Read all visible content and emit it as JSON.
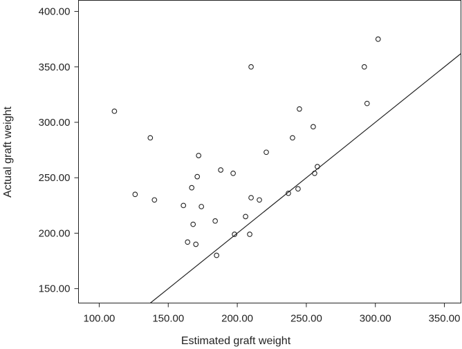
{
  "chart_data": {
    "type": "scatter",
    "title": "",
    "xlabel": "Estimated graft weight",
    "ylabel": "Actual graft weight",
    "xlim": [
      85,
      362
    ],
    "ylim": [
      137,
      410
    ],
    "x_ticks": [
      100,
      150,
      200,
      250,
      300,
      350
    ],
    "y_ticks": [
      150,
      200,
      250,
      300,
      350,
      400
    ],
    "x_tick_labels": [
      "100.00",
      "150.00",
      "200.00",
      "250.00",
      "300.00",
      "350.00"
    ],
    "y_tick_labels": [
      "150.00",
      "200.00",
      "250.00",
      "300.00",
      "350.00",
      "400.00"
    ],
    "grid": false,
    "reference_line": "y = x",
    "colors": {
      "marker": "#222222",
      "line": "#222222",
      "frame": "#222222"
    },
    "points": [
      {
        "x": 111,
        "y": 310
      },
      {
        "x": 126,
        "y": 235
      },
      {
        "x": 137,
        "y": 286
      },
      {
        "x": 140,
        "y": 230
      },
      {
        "x": 161,
        "y": 225
      },
      {
        "x": 164,
        "y": 192
      },
      {
        "x": 167,
        "y": 241
      },
      {
        "x": 168,
        "y": 208
      },
      {
        "x": 170,
        "y": 190
      },
      {
        "x": 171,
        "y": 251
      },
      {
        "x": 172,
        "y": 270
      },
      {
        "x": 174,
        "y": 224
      },
      {
        "x": 184,
        "y": 211
      },
      {
        "x": 185,
        "y": 180
      },
      {
        "x": 188,
        "y": 257
      },
      {
        "x": 197,
        "y": 254
      },
      {
        "x": 198,
        "y": 199
      },
      {
        "x": 206,
        "y": 215
      },
      {
        "x": 209,
        "y": 199
      },
      {
        "x": 210,
        "y": 232
      },
      {
        "x": 210,
        "y": 350
      },
      {
        "x": 216,
        "y": 230
      },
      {
        "x": 221,
        "y": 273
      },
      {
        "x": 237,
        "y": 236
      },
      {
        "x": 240,
        "y": 286
      },
      {
        "x": 244,
        "y": 240
      },
      {
        "x": 245,
        "y": 312
      },
      {
        "x": 255,
        "y": 296
      },
      {
        "x": 256,
        "y": 254
      },
      {
        "x": 258,
        "y": 260
      },
      {
        "x": 292,
        "y": 350
      },
      {
        "x": 294,
        "y": 317
      },
      {
        "x": 302,
        "y": 375
      }
    ]
  }
}
